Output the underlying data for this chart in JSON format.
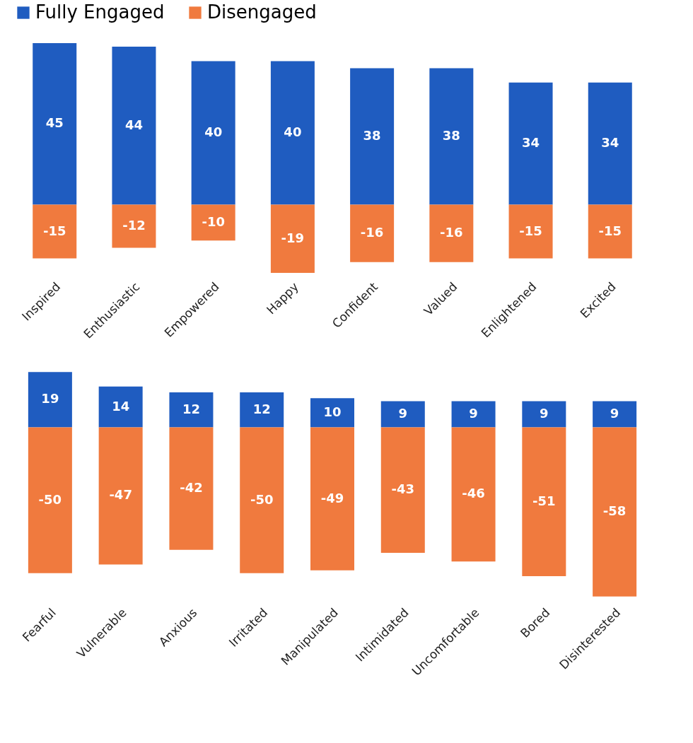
{
  "chart_data": [
    {
      "type": "bar",
      "stacked": true,
      "data_labels": true,
      "legend": "top",
      "tick_labels": "x",
      "grid": false,
      "categories": [
        "Inspired",
        "Enthusiastic",
        "Empowered",
        "Happy",
        "Confident",
        "Valued",
        "Enlightened",
        "Excited"
      ],
      "series": [
        {
          "name": "Fully Engaged",
          "color": "#1f5cc0",
          "values": [
            45,
            44,
            40,
            40,
            38,
            38,
            34,
            34
          ]
        },
        {
          "name": "Disengaged",
          "color": "#f07a3e",
          "values": [
            -15,
            -12,
            -10,
            -19,
            -16,
            -16,
            -15,
            -15
          ]
        }
      ]
    },
    {
      "type": "bar",
      "stacked": true,
      "data_labels": true,
      "tick_labels": "x",
      "grid": false,
      "categories": [
        "Fearful",
        "Vulnerable",
        "Anxious",
        "Irritated",
        "Manipulated",
        "Intimidated",
        "Uncomfortable",
        "Bored",
        "Disinterested"
      ],
      "series": [
        {
          "color": "#1f5cc0",
          "values": [
            19,
            14,
            12,
            12,
            10,
            9,
            9,
            9,
            9
          ]
        },
        {
          "color": "#f07a3e",
          "values": [
            -50,
            -47,
            -42,
            -50,
            -49,
            -43,
            -46,
            -51,
            -58
          ]
        }
      ]
    }
  ]
}
